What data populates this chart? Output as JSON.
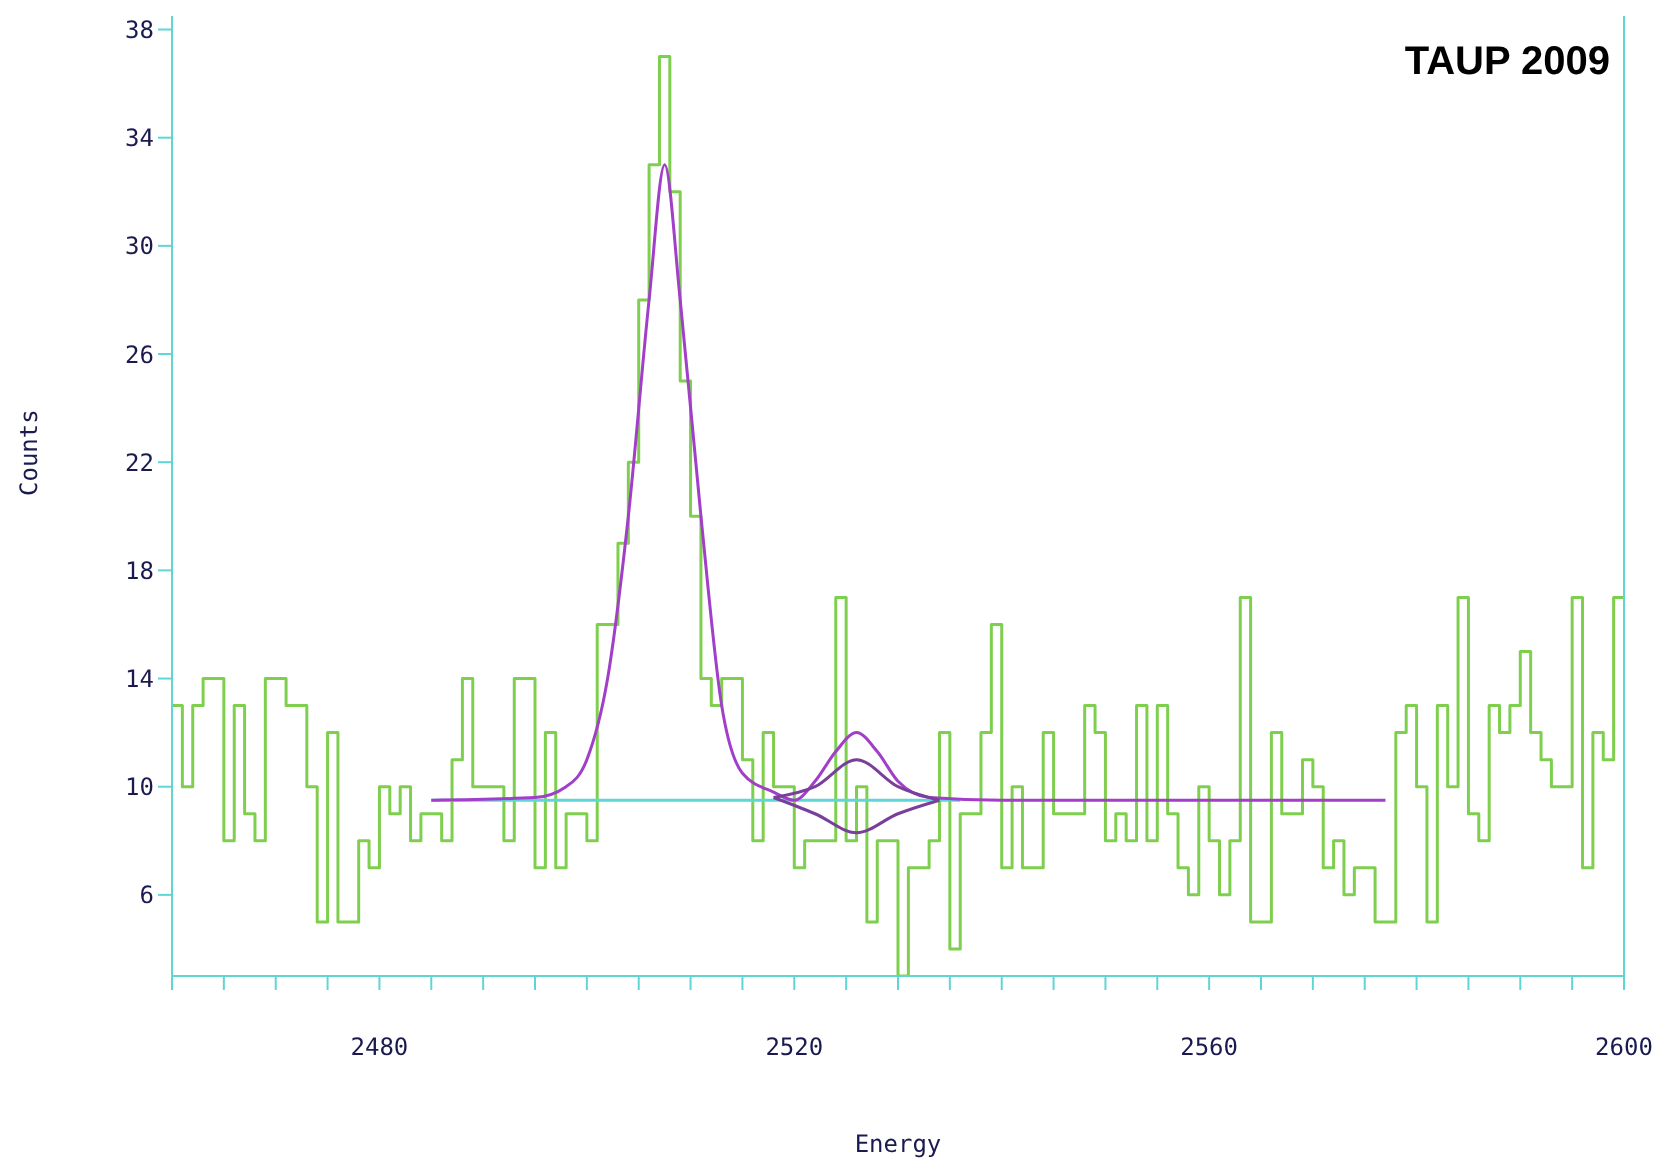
{
  "chart_data": {
    "type": "histogram",
    "xlabel": "Energy",
    "ylabel": "Counts",
    "annotations": [
      "TAUP 2009"
    ],
    "xlim": [
      2460,
      2600
    ],
    "xticks": [
      {
        "value": 2460,
        "label": null
      },
      {
        "value": 2465,
        "label": null
      },
      {
        "value": 2470,
        "label": null
      },
      {
        "value": 2475,
        "label": null
      },
      2480,
      {
        "value": 2485,
        "label": null
      },
      {
        "value": 2490,
        "label": null
      },
      {
        "value": 2495,
        "label": null
      },
      {
        "value": 2500,
        "label": null
      },
      {
        "value": 2505,
        "label": null
      },
      {
        "value": 2510,
        "label": null
      },
      {
        "value": 2515,
        "label": null
      },
      2520,
      {
        "value": 2525,
        "label": null
      },
      {
        "value": 2530,
        "label": null
      },
      {
        "value": 2535,
        "label": null
      },
      {
        "value": 2540,
        "label": null
      },
      {
        "value": 2545,
        "label": null
      },
      {
        "value": 2550,
        "label": null
      },
      {
        "value": 2555,
        "label": null
      },
      2560,
      {
        "value": 2565,
        "label": null
      },
      {
        "value": 2570,
        "label": null
      },
      {
        "value": 2575,
        "label": null
      },
      {
        "value": 2580,
        "label": null
      },
      {
        "value": 2585,
        "label": null
      },
      {
        "value": 2590,
        "label": null
      },
      {
        "value": 2595,
        "label": null
      },
      2600
    ],
    "ylim": [
      3,
      38.5
    ],
    "yticks": [
      6,
      10,
      14,
      18,
      22,
      26,
      30,
      34,
      38
    ],
    "marker": "none",
    "series": [
      {
        "color": "#7fcf4f",
        "bins": [
          2460,
          2461,
          2462,
          2463,
          2464,
          2465,
          2466,
          2467,
          2468,
          2469,
          2470,
          2471,
          2472,
          2473,
          2474,
          2475,
          2476,
          2477,
          2478,
          2479,
          2480,
          2481,
          2482,
          2483,
          2484,
          2485,
          2486,
          2487,
          2488,
          2489,
          2490,
          2491,
          2492,
          2493,
          2494,
          2495,
          2496,
          2497,
          2498,
          2499,
          2500,
          2501,
          2502,
          2503,
          2504,
          2505,
          2506,
          2507,
          2508,
          2509,
          2510,
          2511,
          2512,
          2513,
          2514,
          2515,
          2516,
          2517,
          2518,
          2519,
          2520,
          2521,
          2522,
          2523,
          2524,
          2525,
          2526,
          2527,
          2528,
          2529,
          2530,
          2531,
          2532,
          2533,
          2534,
          2535,
          2536,
          2537,
          2538,
          2539,
          2540,
          2541,
          2542,
          2543,
          2544,
          2545,
          2546,
          2547,
          2548,
          2549,
          2550,
          2551,
          2552,
          2553,
          2554,
          2555,
          2556,
          2557,
          2558,
          2559,
          2560,
          2561,
          2562,
          2563,
          2564,
          2565,
          2566,
          2567,
          2568,
          2569,
          2570,
          2571,
          2572,
          2573,
          2574,
          2575,
          2576,
          2577,
          2578,
          2579,
          2580,
          2581,
          2582,
          2583,
          2584,
          2585,
          2586,
          2587,
          2588,
          2589,
          2590,
          2591,
          2592,
          2593,
          2594,
          2595,
          2596,
          2597,
          2598,
          2599,
          2600
        ],
        "values": [
          13,
          10,
          13,
          14,
          14,
          8,
          13,
          9,
          8,
          14,
          14,
          13,
          13,
          10,
          5,
          12,
          5,
          5,
          8,
          7,
          10,
          9,
          10,
          8,
          9,
          9,
          8,
          11,
          14,
          10,
          10,
          10,
          8,
          14,
          14,
          7,
          12,
          7,
          9,
          9,
          8,
          16,
          16,
          19,
          22,
          28,
          33,
          37,
          32,
          25,
          20,
          14,
          13,
          14,
          14,
          11,
          8,
          12,
          10,
          10,
          7,
          8,
          8,
          8,
          17,
          8,
          10,
          5,
          8,
          8,
          3,
          7,
          7,
          8,
          12,
          4,
          9,
          9,
          12,
          16,
          7,
          10,
          7,
          7,
          12,
          9,
          9,
          9,
          13,
          12,
          8,
          9,
          8,
          13,
          8,
          13,
          9,
          7,
          6,
          10,
          8,
          6,
          8,
          17,
          5,
          5,
          12,
          9,
          9,
          11,
          10,
          7,
          8,
          6,
          7,
          7,
          5,
          5,
          12,
          13,
          10,
          5,
          13,
          10,
          17,
          9,
          8,
          13,
          12,
          13,
          15,
          12,
          11,
          10,
          10,
          17,
          7,
          12,
          11,
          17
        ]
      },
      {
        "type": "line",
        "color": "#5fd6d6",
        "x": [
          2485,
          2536
        ],
        "values": [
          9.5,
          9.5
        ]
      },
      {
        "type": "line",
        "color": "#a23fc8",
        "x": [
          2485,
          2495,
          2498,
          2500,
          2502,
          2504,
          2506,
          2507.5,
          2509,
          2511,
          2513,
          2515,
          2518,
          2520,
          2522,
          2524,
          2526,
          2528,
          2530,
          2533,
          2540,
          2577
        ],
        "values": [
          9.5,
          9.6,
          10,
          11,
          14,
          20,
          28,
          33,
          28,
          20,
          13,
          10.5,
          9.8,
          9.5,
          10.2,
          11.3,
          12,
          11.3,
          10.2,
          9.6,
          9.5,
          9.5
        ]
      },
      {
        "type": "line",
        "color": "#7a3f9a",
        "x": [
          2518,
          2522,
          2526,
          2530,
          2534,
          null,
          2518,
          2522,
          2526,
          2530,
          2534
        ],
        "values": [
          9.6,
          10,
          11,
          10,
          9.5,
          null,
          9.6,
          9,
          8.3,
          9,
          9.5
        ]
      }
    ]
  }
}
